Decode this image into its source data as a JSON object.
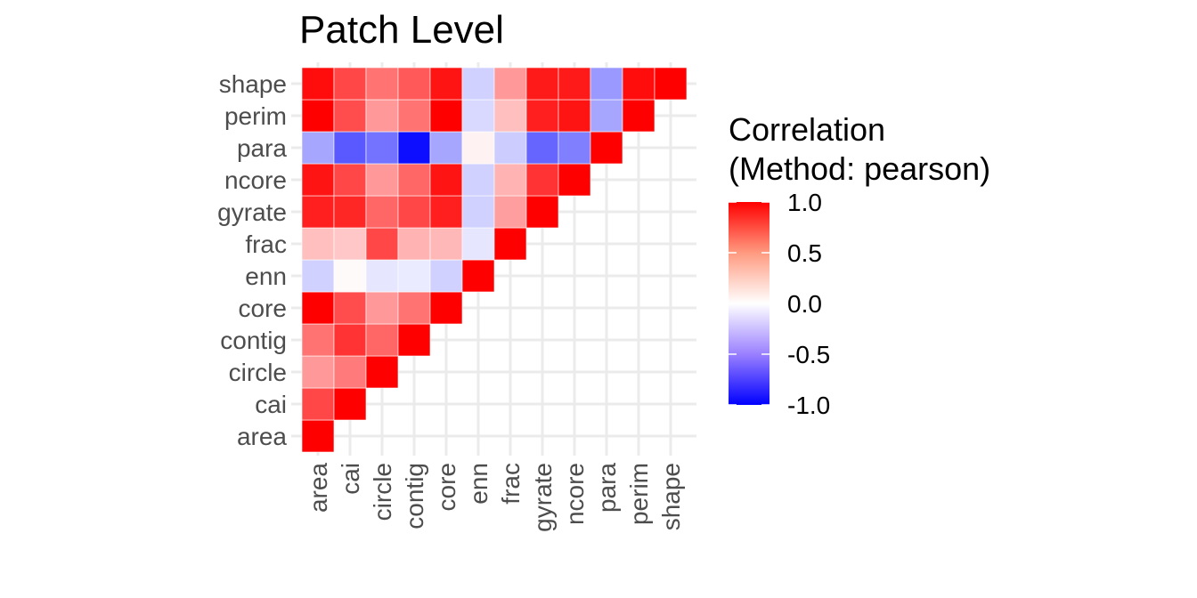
{
  "chart_data": {
    "type": "heatmap",
    "title": "Patch Level",
    "variables": [
      "area",
      "cai",
      "circle",
      "contig",
      "core",
      "enn",
      "frac",
      "gyrate",
      "ncore",
      "para",
      "perim",
      "shape"
    ],
    "matrix_lower": [
      [
        1.0
      ],
      [
        0.72,
        1.0
      ],
      [
        0.4,
        0.52,
        1.0
      ],
      [
        0.55,
        0.8,
        0.6,
        1.0
      ],
      [
        1.0,
        0.7,
        0.4,
        0.55,
        1.0
      ],
      [
        -0.18,
        0.02,
        -0.1,
        -0.08,
        -0.18,
        1.0
      ],
      [
        0.25,
        0.22,
        0.72,
        0.3,
        0.28,
        -0.1,
        1.0
      ],
      [
        0.88,
        0.85,
        0.6,
        0.72,
        0.88,
        -0.18,
        0.38,
        1.0
      ],
      [
        0.92,
        0.72,
        0.4,
        0.6,
        0.92,
        -0.18,
        0.3,
        0.8,
        1.0
      ],
      [
        -0.35,
        -0.65,
        -0.55,
        -0.95,
        -0.35,
        0.05,
        -0.2,
        -0.6,
        -0.5,
        1.0
      ],
      [
        1.0,
        0.7,
        0.4,
        0.55,
        1.0,
        -0.15,
        0.25,
        0.88,
        0.92,
        -0.35,
        1.0
      ],
      [
        0.95,
        0.72,
        0.55,
        0.65,
        0.92,
        -0.18,
        0.4,
        0.9,
        0.9,
        -0.4,
        0.95,
        1.0
      ]
    ],
    "legend": {
      "title_line1": "Correlation",
      "title_line2": "(Method: pearson)",
      "ticks": [
        "1.0",
        "0.5",
        "0.0",
        "-0.5",
        "-1.0"
      ],
      "tick_values": [
        1.0,
        0.5,
        0.0,
        -0.5,
        -1.0
      ],
      "range": [
        -1,
        1
      ]
    },
    "colors": {
      "low": "#0000ff",
      "mid": "#ffffff",
      "high": "#ff0000"
    },
    "grid": true,
    "legend_position": "right"
  }
}
